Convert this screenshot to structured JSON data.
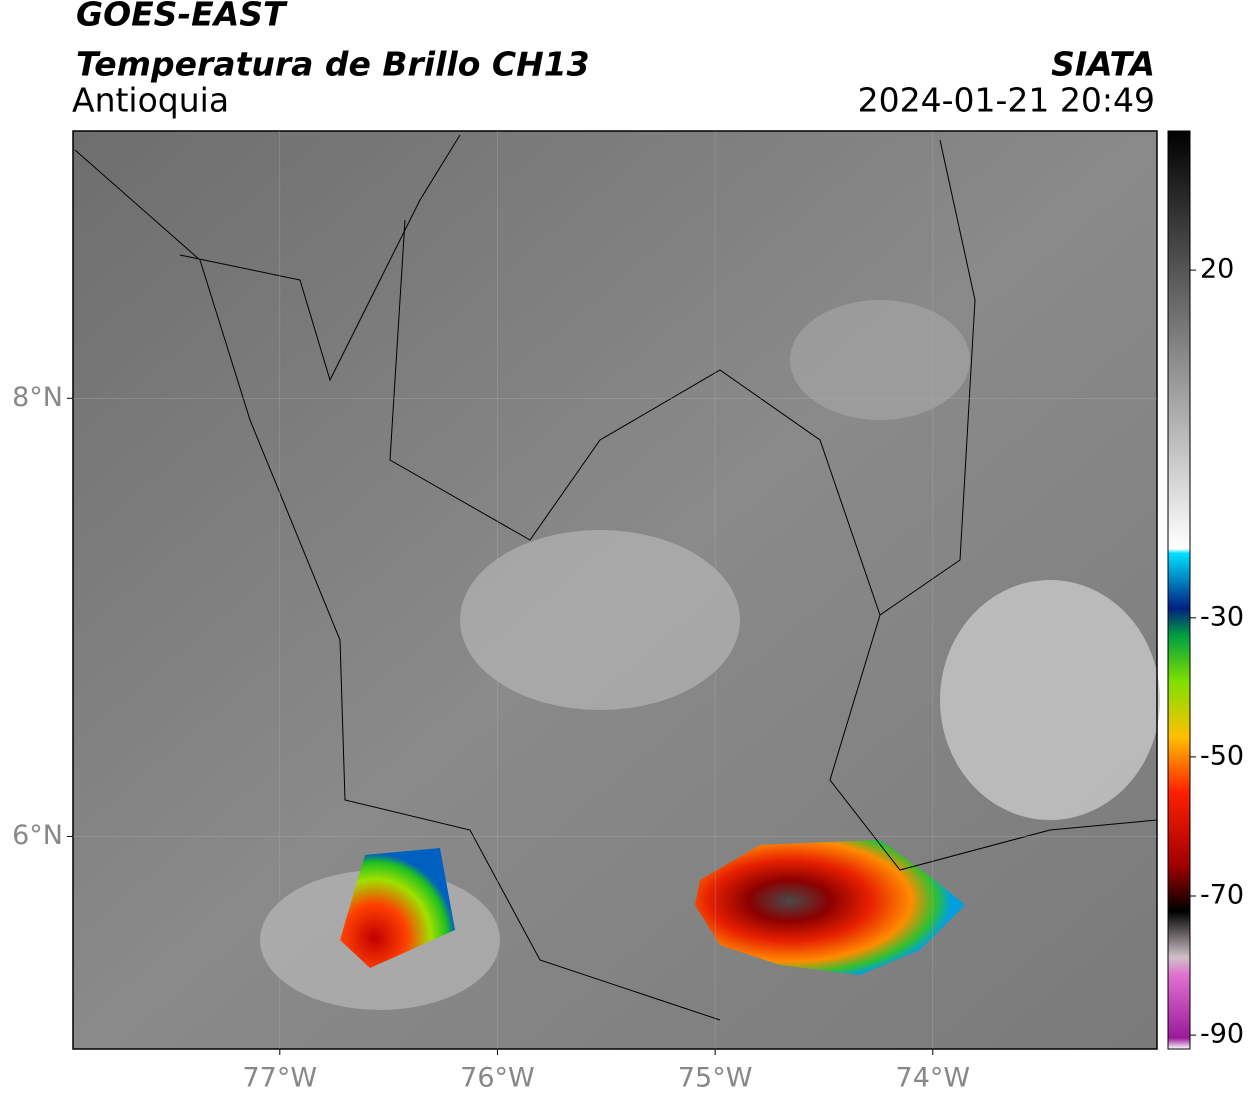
{
  "header": {
    "title": "GOES-EAST",
    "product": "Temperatura de Brillo CH13",
    "region": "Antioquia",
    "source": "SIATA",
    "datetime": "2024-01-21 20:49"
  },
  "chart_data": {
    "type": "map",
    "xlim": [
      -77.95,
      -72.97
    ],
    "xticks": [
      {
        "value": -77,
        "label": "77°W"
      },
      {
        "value": -76,
        "label": "76°W"
      },
      {
        "value": -75,
        "label": "75°W"
      },
      {
        "value": -74,
        "label": "74°W"
      }
    ],
    "ylim": [
      5.03,
      9.22
    ],
    "yticks": [
      {
        "value": 8,
        "label": "8°N"
      },
      {
        "value": 6,
        "label": "6°N"
      }
    ],
    "grid": true,
    "colorbar": {
      "lim": [
        -92,
        40
      ],
      "ticks": [
        20,
        -30,
        -50,
        -70,
        -90
      ]
    }
  }
}
